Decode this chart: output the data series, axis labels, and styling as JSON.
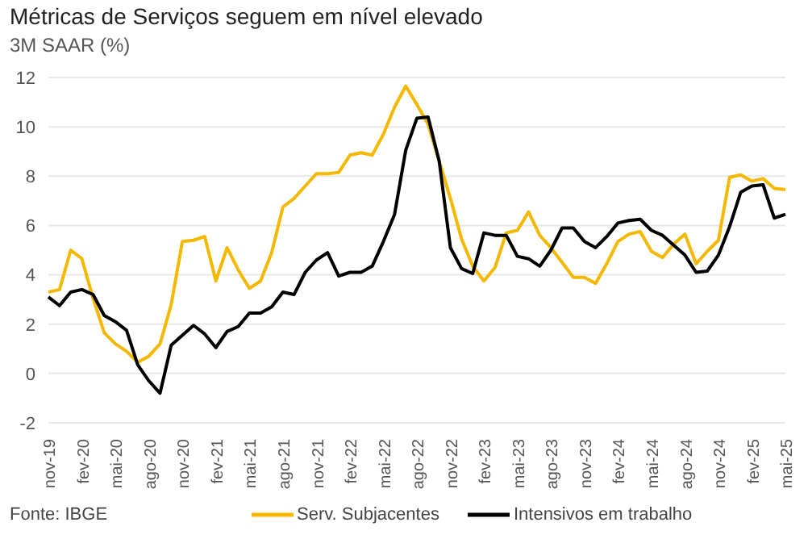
{
  "chart_data": {
    "type": "line",
    "title": "Métricas de Serviços seguem em nível elevado",
    "subtitle": "3M SAAR (%)",
    "annotations": [
      "Fonte: IBGE"
    ],
    "categories": [
      "nov-19",
      null,
      null,
      "fev-20",
      null,
      null,
      "mai-20",
      null,
      null,
      "ago-20",
      null,
      null,
      "nov-20",
      null,
      null,
      "fev-21",
      null,
      null,
      "mai-21",
      null,
      null,
      "ago-21",
      null,
      null,
      "nov-21",
      null,
      null,
      "fev-22",
      null,
      null,
      "mai-22",
      null,
      null,
      "ago-22",
      null,
      null,
      "nov-22",
      null,
      null,
      "fev-23",
      null,
      null,
      "mai-23",
      null,
      null,
      "ago-23",
      null,
      null,
      "nov-23",
      null,
      null,
      "fev-24",
      null,
      null,
      "mai-24",
      null,
      null,
      "ago-24",
      null,
      null,
      "nov-24",
      null,
      null,
      "fev-25",
      null,
      null,
      "mai-25"
    ],
    "series": [
      {
        "name": "Serv. Subjacentes",
        "color": "#f5b800",
        "values": [
          3.3,
          3.4,
          5.0,
          4.65,
          3.05,
          1.65,
          1.2,
          0.9,
          0.45,
          0.7,
          1.2,
          2.8,
          5.35,
          5.4,
          5.55,
          3.75,
          5.1,
          4.2,
          3.45,
          3.75,
          4.9,
          6.75,
          7.1,
          7.6,
          8.1,
          8.1,
          8.15,
          8.85,
          8.95,
          8.85,
          9.7,
          10.8,
          11.65,
          10.9,
          10.1,
          8.6,
          7.1,
          5.45,
          4.35,
          3.75,
          4.3,
          5.7,
          5.8,
          6.55,
          5.6,
          5.1,
          4.5,
          3.9,
          3.9,
          3.65,
          4.45,
          5.35,
          5.65,
          5.75,
          4.95,
          4.7,
          5.25,
          5.65,
          4.45,
          4.95,
          5.4,
          7.95,
          8.05,
          7.8,
          7.9,
          7.5,
          7.45
        ]
      },
      {
        "name": "Intensivos em trabalho",
        "color": "#000000",
        "values": [
          3.1,
          2.75,
          3.3,
          3.4,
          3.2,
          2.35,
          2.1,
          1.75,
          0.35,
          -0.3,
          -0.8,
          1.15,
          1.55,
          1.95,
          1.6,
          1.05,
          1.7,
          1.9,
          2.45,
          2.45,
          2.7,
          3.3,
          3.2,
          4.1,
          4.6,
          4.9,
          3.95,
          4.1,
          4.1,
          4.35,
          5.35,
          6.45,
          9.05,
          10.35,
          10.4,
          8.6,
          5.1,
          4.25,
          4.05,
          5.7,
          5.6,
          5.6,
          4.75,
          4.65,
          4.35,
          5.0,
          5.9,
          5.9,
          5.35,
          5.1,
          5.55,
          6.1,
          6.2,
          6.25,
          5.8,
          5.6,
          5.2,
          4.8,
          4.1,
          4.15,
          4.8,
          5.95,
          7.35,
          7.6,
          7.65,
          6.3,
          6.45
        ]
      }
    ],
    "ylim": [
      -2,
      12
    ],
    "yticks": [
      -2,
      0,
      2,
      4,
      6,
      8,
      10,
      12
    ],
    "grid": "y",
    "legend": "bottom",
    "marker": "none",
    "line_style": "solid"
  }
}
